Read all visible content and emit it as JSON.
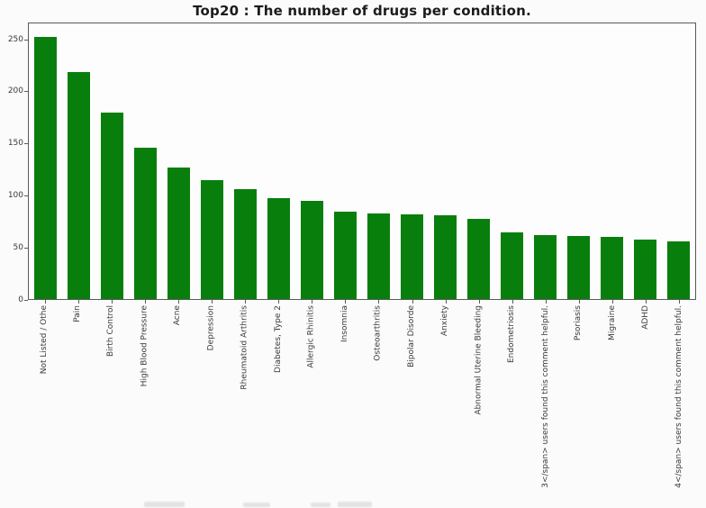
{
  "figure": {
    "title": "Top20 : The number of drugs per condition."
  },
  "chart_data": {
    "type": "bar",
    "title": "Top20 : The number of drugs per condition.",
    "categories": [
      "Not Listed / Othe",
      "Pain",
      "Birth Control",
      "High Blood Pressure",
      "Acne",
      "Depression",
      "Rheumatoid Arthritis",
      "Diabetes, Type 2",
      "Allergic Rhinitis",
      "Insomnia",
      "Osteoarthritis",
      "Bipolar Disorde",
      "Anxiety",
      "Abnormal Uterine Bleeding",
      "Endometriosis",
      "3</span> users found this comment helpful.",
      "Psoriasis",
      "Migraine",
      "ADHD",
      "4</span> users found this comment helpful."
    ],
    "values": [
      253,
      219,
      180,
      146,
      127,
      115,
      106,
      97,
      95,
      84,
      83,
      82,
      81,
      77,
      64,
      62,
      61,
      60,
      57,
      56
    ],
    "xlabel": "",
    "ylabel": "",
    "yticks": [
      0,
      50,
      100,
      150,
      200,
      250
    ],
    "ylim": [
      0,
      266
    ],
    "grid": false,
    "legend": null,
    "label_rotation_deg": 90,
    "colors": {
      "bar": "#087f0c",
      "spine": "#5a5a5a",
      "tick_label": "#3a3a3a",
      "title": "#1b1b1b",
      "background": "#fbfbfb"
    }
  }
}
